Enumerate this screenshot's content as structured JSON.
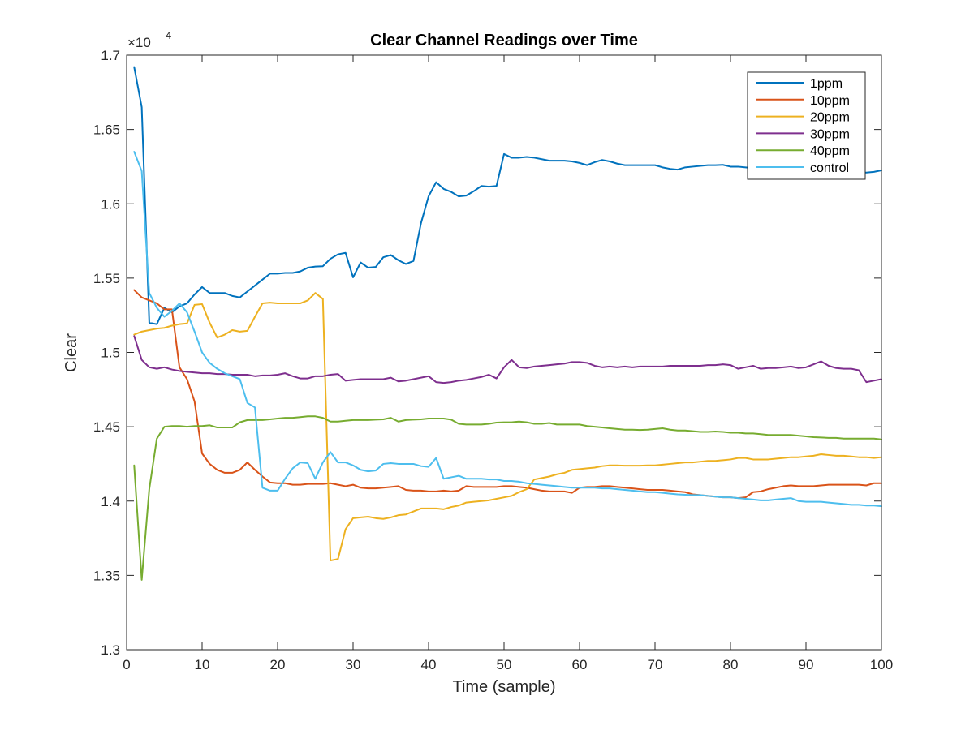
{
  "chart_data": {
    "type": "line",
    "title": "Clear Channel Readings over Time",
    "xlabel": "Time (sample)",
    "ylabel": "Clear",
    "exponent_label": "×10",
    "exponent_power": "4",
    "xlim": [
      0,
      100
    ],
    "ylim": [
      13000,
      17000
    ],
    "xticks": [
      0,
      10,
      20,
      30,
      40,
      50,
      60,
      70,
      80,
      90,
      100
    ],
    "xtick_labels": [
      "0",
      "10",
      "20",
      "30",
      "40",
      "50",
      "60",
      "70",
      "80",
      "90",
      "100"
    ],
    "yticks": [
      13000,
      13500,
      14000,
      14500,
      15000,
      15500,
      16000,
      16500,
      17000
    ],
    "ytick_labels": [
      "1.3",
      "1.35",
      "1.4",
      "1.45",
      "1.5",
      "1.55",
      "1.6",
      "1.65",
      "1.7"
    ],
    "grid": false,
    "legend_position": "top-right",
    "x": [
      1,
      2,
      3,
      4,
      5,
      6,
      7,
      8,
      9,
      10,
      11,
      12,
      13,
      14,
      15,
      16,
      17,
      18,
      19,
      20,
      21,
      22,
      23,
      24,
      25,
      26,
      27,
      28,
      29,
      30,
      31,
      32,
      33,
      34,
      35,
      36,
      37,
      38,
      39,
      40,
      41,
      42,
      43,
      44,
      45,
      46,
      47,
      48,
      49,
      50,
      51,
      52,
      53,
      54,
      55,
      56,
      57,
      58,
      59,
      60,
      61,
      62,
      63,
      64,
      65,
      66,
      67,
      68,
      69,
      70,
      71,
      72,
      73,
      74,
      75,
      76,
      77,
      78,
      79,
      80,
      81,
      82,
      83,
      84,
      85,
      86,
      87,
      88,
      89,
      90,
      91,
      92,
      93,
      94,
      95,
      96,
      97,
      98,
      99,
      100
    ],
    "series": [
      {
        "name": "1ppm",
        "color": "#0072BD",
        "values": [
          16920,
          16650,
          15200,
          15190,
          15300,
          15270,
          15310,
          15330,
          15390,
          15440,
          15400,
          15400,
          15400,
          15380,
          15370,
          15410,
          15450,
          15490,
          15530,
          15530,
          15535,
          15535,
          15545,
          15570,
          15578,
          15580,
          15630,
          15660,
          15670,
          15505,
          15605,
          15570,
          15575,
          15640,
          15655,
          15620,
          15595,
          15615,
          15870,
          16050,
          16145,
          16100,
          16080,
          16050,
          16055,
          16085,
          16120,
          16115,
          16120,
          16335,
          16310,
          16310,
          16315,
          16310,
          16300,
          16290,
          16290,
          16290,
          16285,
          16275,
          16260,
          16280,
          16295,
          16285,
          16270,
          16260,
          16260,
          16260,
          16260,
          16260,
          16245,
          16235,
          16230,
          16245,
          16250,
          16255,
          16260,
          16260,
          16262,
          16250,
          16250,
          16245,
          16240,
          16235,
          16230,
          16225,
          16225,
          16222,
          16220,
          16220,
          16218,
          16215,
          16212,
          16210,
          16210,
          16210,
          16210,
          16210,
          16215,
          16225
        ]
      },
      {
        "name": "10ppm",
        "color": "#D95319",
        "values": [
          15420,
          15370,
          15350,
          15330,
          15290,
          15290,
          14900,
          14820,
          14670,
          14320,
          14250,
          14210,
          14190,
          14190,
          14210,
          14260,
          14210,
          14165,
          14125,
          14120,
          14120,
          14110,
          14110,
          14115,
          14115,
          14115,
          14120,
          14110,
          14100,
          14110,
          14090,
          14085,
          14085,
          14090,
          14095,
          14100,
          14075,
          14070,
          14070,
          14065,
          14065,
          14070,
          14065,
          14070,
          14100,
          14095,
          14095,
          14095,
          14095,
          14100,
          14100,
          14095,
          14090,
          14080,
          14070,
          14065,
          14065,
          14065,
          14055,
          14090,
          14095,
          14095,
          14100,
          14100,
          14095,
          14090,
          14085,
          14080,
          14075,
          14075,
          14075,
          14070,
          14065,
          14060,
          14045,
          14040,
          14035,
          14030,
          14025,
          14025,
          14020,
          14025,
          14060,
          14065,
          14080,
          14090,
          14100,
          14105,
          14100,
          14100,
          14100,
          14105,
          14110,
          14110,
          14110,
          14110,
          14110,
          14105,
          14120,
          14120
        ]
      },
      {
        "name": "20ppm",
        "color": "#EDB120",
        "values": [
          15120,
          15140,
          15150,
          15160,
          15165,
          15180,
          15190,
          15195,
          15320,
          15325,
          15200,
          15100,
          15120,
          15150,
          15140,
          15145,
          15240,
          15330,
          15335,
          15330,
          15330,
          15330,
          15330,
          15350,
          15400,
          15360,
          13600,
          13610,
          13810,
          13885,
          13890,
          13895,
          13885,
          13880,
          13890,
          13905,
          13910,
          13930,
          13950,
          13950,
          13950,
          13945,
          13960,
          13970,
          13990,
          13995,
          14000,
          14005,
          14015,
          14025,
          14035,
          14060,
          14080,
          14145,
          14155,
          14165,
          14180,
          14190,
          14210,
          14215,
          14220,
          14225,
          14235,
          14240,
          14240,
          14238,
          14238,
          14238,
          14240,
          14240,
          14245,
          14250,
          14255,
          14260,
          14260,
          14265,
          14270,
          14270,
          14275,
          14280,
          14290,
          14290,
          14280,
          14280,
          14280,
          14285,
          14290,
          14295,
          14295,
          14300,
          14305,
          14315,
          14310,
          14305,
          14305,
          14300,
          14295,
          14295,
          14290,
          14295
        ]
      },
      {
        "name": "30ppm",
        "color": "#7E2F8E",
        "values": [
          15110,
          14950,
          14900,
          14890,
          14900,
          14885,
          14875,
          14870,
          14865,
          14860,
          14860,
          14855,
          14855,
          14850,
          14850,
          14850,
          14840,
          14845,
          14845,
          14850,
          14860,
          14840,
          14825,
          14825,
          14840,
          14840,
          14850,
          14855,
          14810,
          14815,
          14820,
          14820,
          14820,
          14820,
          14830,
          14805,
          14810,
          14820,
          14830,
          14840,
          14800,
          14795,
          14800,
          14810,
          14815,
          14825,
          14835,
          14850,
          14825,
          14900,
          14950,
          14900,
          14895,
          14905,
          14910,
          14915,
          14920,
          14925,
          14935,
          14935,
          14930,
          14910,
          14900,
          14905,
          14900,
          14905,
          14900,
          14905,
          14905,
          14905,
          14905,
          14910,
          14910,
          14910,
          14910,
          14910,
          14915,
          14915,
          14920,
          14915,
          14890,
          14900,
          14910,
          14890,
          14895,
          14895,
          14900,
          14905,
          14895,
          14900,
          14920,
          14940,
          14910,
          14895,
          14890,
          14890,
          14880,
          14800,
          14810,
          14820
        ]
      },
      {
        "name": "40ppm",
        "color": "#77AC30",
        "values": [
          14240,
          13470,
          14080,
          14420,
          14500,
          14505,
          14505,
          14500,
          14505,
          14505,
          14510,
          14495,
          14495,
          14495,
          14530,
          14545,
          14545,
          14545,
          14550,
          14555,
          14560,
          14560,
          14565,
          14570,
          14570,
          14560,
          14535,
          14535,
          14540,
          14545,
          14545,
          14545,
          14548,
          14550,
          14560,
          14535,
          14545,
          14548,
          14550,
          14555,
          14555,
          14555,
          14548,
          14520,
          14515,
          14515,
          14515,
          14520,
          14528,
          14530,
          14530,
          14535,
          14530,
          14520,
          14520,
          14525,
          14515,
          14515,
          14515,
          14515,
          14505,
          14500,
          14495,
          14490,
          14485,
          14480,
          14480,
          14478,
          14480,
          14485,
          14490,
          14480,
          14475,
          14475,
          14470,
          14465,
          14465,
          14468,
          14465,
          14460,
          14460,
          14455,
          14455,
          14450,
          14445,
          14445,
          14445,
          14445,
          14440,
          14435,
          14430,
          14428,
          14425,
          14425,
          14420,
          14420,
          14420,
          14420,
          14420,
          14415
        ]
      },
      {
        "name": "control",
        "color": "#4DBEEE",
        "values": [
          16350,
          16220,
          15400,
          15300,
          15240,
          15280,
          15330,
          15270,
          15140,
          15000,
          14930,
          14890,
          14860,
          14840,
          14820,
          14660,
          14630,
          14090,
          14070,
          14070,
          14150,
          14220,
          14260,
          14255,
          14150,
          14260,
          14330,
          14260,
          14260,
          14240,
          14210,
          14200,
          14205,
          14250,
          14255,
          14250,
          14250,
          14250,
          14235,
          14230,
          14290,
          14150,
          14160,
          14170,
          14150,
          14150,
          14150,
          14145,
          14145,
          14135,
          14135,
          14130,
          14120,
          14115,
          14110,
          14105,
          14100,
          14095,
          14090,
          14090,
          14090,
          14090,
          14085,
          14085,
          14080,
          14075,
          14070,
          14065,
          14060,
          14060,
          14055,
          14050,
          14045,
          14042,
          14040,
          14040,
          14035,
          14030,
          14025,
          14025,
          14020,
          14015,
          14010,
          14005,
          14005,
          14010,
          14015,
          14020,
          14000,
          13995,
          13995,
          13995,
          13990,
          13985,
          13980,
          13975,
          13975,
          13970,
          13970,
          13965
        ]
      }
    ]
  }
}
